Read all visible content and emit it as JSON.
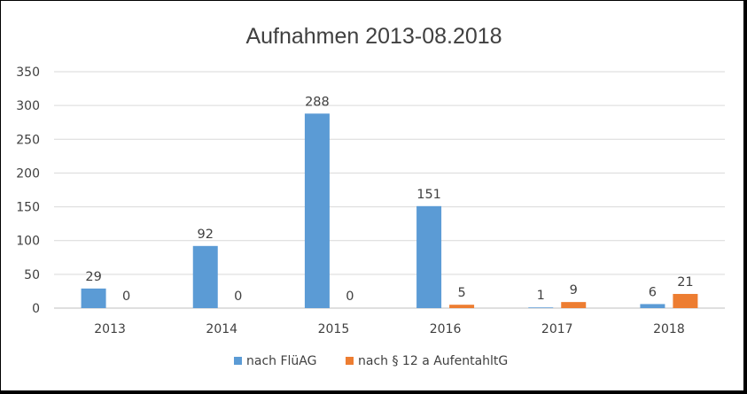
{
  "chart_data": {
    "type": "bar",
    "title": "Aufnahmen 2013-08.2018",
    "xlabel": "",
    "ylabel": "",
    "categories": [
      "2013",
      "2014",
      "2015",
      "2016",
      "2017",
      "2018"
    ],
    "series": [
      {
        "name": "nach FlüAG",
        "values": [
          29,
          92,
          288,
          151,
          1,
          6
        ],
        "color": "#5B9BD5"
      },
      {
        "name": "nach § 12 a AufentahltG",
        "values": [
          0,
          0,
          0,
          5,
          9,
          21
        ],
        "color": "#ED7D31"
      }
    ],
    "ylim": [
      0,
      350
    ],
    "yticks": [
      "0",
      "50",
      "100",
      "150",
      "200",
      "250",
      "300",
      "350"
    ],
    "grid": true,
    "legend_position": "bottom"
  }
}
